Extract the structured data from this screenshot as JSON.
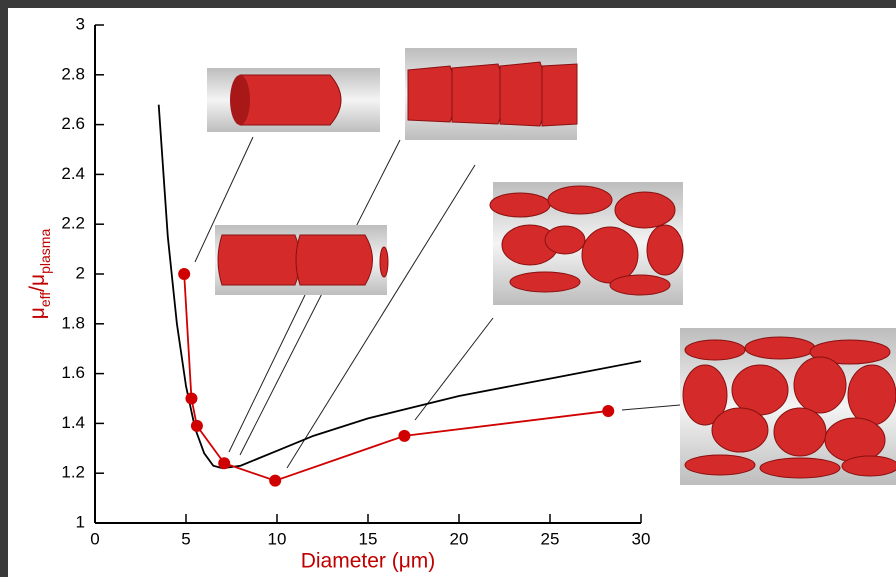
{
  "chart_data": {
    "type": "line",
    "x_label": "Diameter (μm)",
    "y_label": [
      "μ",
      "eff",
      "/μ",
      "plasma"
    ],
    "label_color": "#c00000",
    "xlim": [
      0,
      30
    ],
    "xticks": [
      0,
      5,
      10,
      15,
      20,
      25,
      30
    ],
    "ylim": [
      1,
      3
    ],
    "yticks": [
      1,
      1.2,
      1.4,
      1.6,
      1.8,
      2,
      2.2,
      2.4,
      2.6,
      2.8,
      3
    ],
    "series": [
      {
        "color": "#000000",
        "markers": false,
        "x": [
          3.5,
          4,
          4.5,
          5,
          5.5,
          6,
          6.5,
          7,
          8,
          9,
          10,
          12,
          15,
          20,
          25,
          30
        ],
        "values": [
          2.68,
          2.15,
          1.8,
          1.55,
          1.38,
          1.28,
          1.23,
          1.22,
          1.23,
          1.26,
          1.29,
          1.35,
          1.42,
          1.51,
          1.58,
          1.65
        ]
      },
      {
        "color": "#d00000",
        "markers": true,
        "x": [
          4.9,
          5.3,
          5.6,
          7.1,
          9.9,
          17,
          28.2
        ],
        "values": [
          2.0,
          1.5,
          1.39,
          1.24,
          1.17,
          1.35,
          1.45
        ]
      }
    ]
  }
}
